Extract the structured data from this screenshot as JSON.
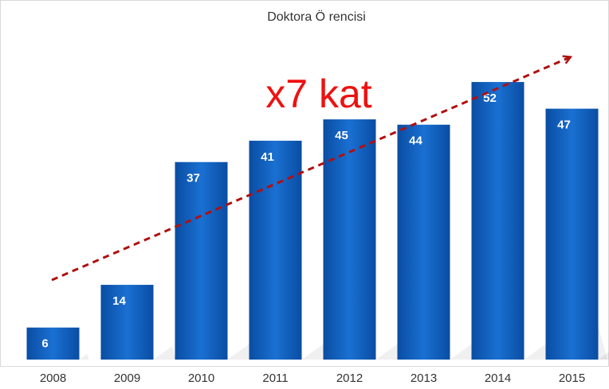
{
  "chart_data": {
    "type": "bar",
    "title": "Doktora Ö rencisi",
    "annotation": "x7 kat",
    "categories": [
      "2008",
      "2009",
      "2010",
      "2011",
      "2012",
      "2013",
      "2014",
      "2015"
    ],
    "values": [
      6,
      14,
      37,
      41,
      45,
      44,
      52,
      47
    ],
    "color": "#0b5cb8"
  }
}
